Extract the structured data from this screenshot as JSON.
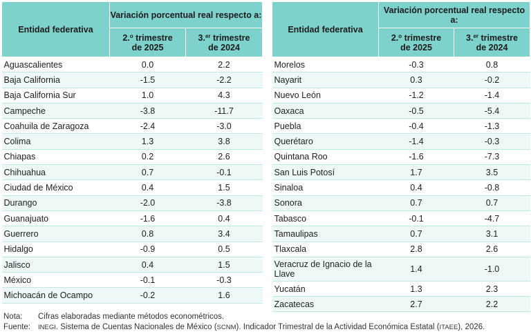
{
  "header": {
    "entity_col": "Entidad federativa",
    "group_label": "Variación porcentual real respecto a:",
    "col_a_main": "2.",
    "col_a_sup": "o",
    "col_a_rest": " trimestre",
    "col_a_year": "de 2025",
    "col_b_main": "3.",
    "col_b_sup": "er",
    "col_b_rest": " trimestre",
    "col_b_year": "de 2024"
  },
  "left_rows": [
    {
      "entity": "Aguascalientes",
      "a": "0.0",
      "b": "2.2"
    },
    {
      "entity": "Baja California",
      "a": "-1.5",
      "b": "-2.2"
    },
    {
      "entity": "Baja California Sur",
      "a": "1.0",
      "b": "4.3"
    },
    {
      "entity": "Campeche",
      "a": "-3.8",
      "b": "-11.7"
    },
    {
      "entity": "Coahuila de Zaragoza",
      "a": "-2.4",
      "b": "-3.0"
    },
    {
      "entity": "Colima",
      "a": "1.3",
      "b": "3.8"
    },
    {
      "entity": "Chiapas",
      "a": "0.2",
      "b": "2.6"
    },
    {
      "entity": "Chihuahua",
      "a": "0.7",
      "b": "-0.1"
    },
    {
      "entity": "Ciudad de México",
      "a": "0.4",
      "b": "1.5"
    },
    {
      "entity": "Durango",
      "a": "-2.0",
      "b": "-3.8"
    },
    {
      "entity": "Guanajuato",
      "a": "-1.6",
      "b": "0.4"
    },
    {
      "entity": "Guerrero",
      "a": "0.8",
      "b": "3.4"
    },
    {
      "entity": "Hidalgo",
      "a": "-0.9",
      "b": "0.5"
    },
    {
      "entity": "Jalisco",
      "a": "0.4",
      "b": "1.5"
    },
    {
      "entity": "México",
      "a": "-0.1",
      "b": "-0.3"
    },
    {
      "entity": "Michoacán de Ocampo",
      "a": "-0.2",
      "b": "1.6"
    }
  ],
  "right_rows": [
    {
      "entity": "Morelos",
      "a": "-0.3",
      "b": "0.8"
    },
    {
      "entity": "Nayarit",
      "a": "0.3",
      "b": "-0.2"
    },
    {
      "entity": "Nuevo León",
      "a": "-1.2",
      "b": "-1.4"
    },
    {
      "entity": "Oaxaca",
      "a": "-0.5",
      "b": "-5.4"
    },
    {
      "entity": "Puebla",
      "a": "-0.4",
      "b": "-1.3"
    },
    {
      "entity": "Querétaro",
      "a": "-1.4",
      "b": "-0.3"
    },
    {
      "entity": "Quintana Roo",
      "a": "-1.6",
      "b": "-7.3"
    },
    {
      "entity": "San Luis Potosí",
      "a": "1.7",
      "b": "3.5"
    },
    {
      "entity": "Sinaloa",
      "a": "0.4",
      "b": "-0.8"
    },
    {
      "entity": "Sonora",
      "a": "0.7",
      "b": "0.7"
    },
    {
      "entity": "Tabasco",
      "a": "-0.1",
      "b": "-4.7"
    },
    {
      "entity": "Tamaulipas",
      "a": "0.7",
      "b": "3.1"
    },
    {
      "entity": "Tlaxcala",
      "a": "2.8",
      "b": "2.6"
    },
    {
      "entity": "Veracruz de Ignacio de la Llave",
      "a": "1.4",
      "b": "-1.0"
    },
    {
      "entity": "Yucatán",
      "a": "1.3",
      "b": "2.3"
    },
    {
      "entity": "Zacatecas",
      "a": "2.7",
      "b": "2.2"
    }
  ],
  "notes": {
    "nota_label": "Nota:",
    "nota_text": "Cifras elaboradas mediante métodos econométricos.",
    "fuente_label": "Fuente:",
    "fuente_p1": "INEGI",
    "fuente_p2": ". Sistema de Cuentas Nacionales de México (",
    "fuente_p3": "SCNM",
    "fuente_p4": "). Indicador Trimestral de la Actividad Económica Estatal (",
    "fuente_p5": "ITAEE",
    "fuente_p6": "), 2026."
  },
  "colors": {
    "header_bg": "#7dd3cb",
    "stripe_bg": "#edf8f7",
    "row_border": "#bfe9e4"
  }
}
